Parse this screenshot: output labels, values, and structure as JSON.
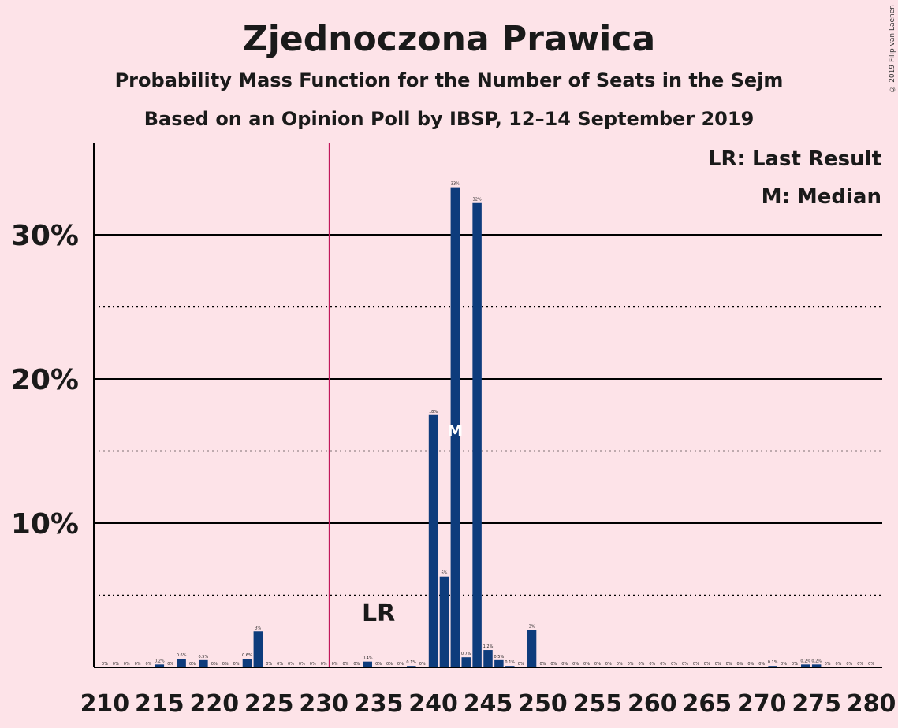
{
  "chart_data": {
    "type": "bar",
    "title": "Zjednoczona Prawica",
    "subtitle1": "Probability Mass Function for the Number of Seats in the Sejm",
    "subtitle2": "Based on an Opinion Poll by IBSP, 12–14 September 2019",
    "copyright": "© 2019 Filip van Laenen",
    "legend": {
      "lr": "LR: Last Result",
      "median": "M: Median"
    },
    "last_result_marker": "LR",
    "median_marker": "M",
    "last_result_seat": 235,
    "median_seat": 242,
    "ylim": [
      0,
      36.3
    ],
    "yticks": [
      {
        "value": 10,
        "label": "10%"
      },
      {
        "value": 20,
        "label": "20%"
      },
      {
        "value": 30,
        "label": "30%"
      }
    ],
    "xlim": [
      209,
      281
    ],
    "xticks": [
      "210",
      "215",
      "220",
      "225",
      "230",
      "235",
      "240",
      "245",
      "250",
      "255",
      "260",
      "265",
      "270",
      "275",
      "280"
    ],
    "colors": {
      "bar": "#0e3c7c",
      "majority_line": "#c2185b",
      "background": "#fde3e8",
      "grid": "#000000"
    },
    "majority_line_x": 230.5,
    "bars": [
      {
        "x": 210,
        "value": 0,
        "label": "0%"
      },
      {
        "x": 211,
        "value": 0,
        "label": "0%"
      },
      {
        "x": 212,
        "value": 0,
        "label": "0%"
      },
      {
        "x": 213,
        "value": 0,
        "label": "0%"
      },
      {
        "x": 214,
        "value": 0,
        "label": "0%"
      },
      {
        "x": 215,
        "value": 0.2,
        "label": "0.2%"
      },
      {
        "x": 216,
        "value": 0,
        "label": "0%"
      },
      {
        "x": 217,
        "value": 0.6,
        "label": "0.6%"
      },
      {
        "x": 218,
        "value": 0,
        "label": "0%"
      },
      {
        "x": 219,
        "value": 0.5,
        "label": "0.5%"
      },
      {
        "x": 220,
        "value": 0,
        "label": "0%"
      },
      {
        "x": 221,
        "value": 0,
        "label": "0%"
      },
      {
        "x": 222,
        "value": 0,
        "label": "0%"
      },
      {
        "x": 223,
        "value": 0.6,
        "label": "0.6%"
      },
      {
        "x": 224,
        "value": 2.5,
        "label": "3%"
      },
      {
        "x": 225,
        "value": 0,
        "label": "0%"
      },
      {
        "x": 226,
        "value": 0,
        "label": "0%"
      },
      {
        "x": 227,
        "value": 0,
        "label": "0%"
      },
      {
        "x": 228,
        "value": 0,
        "label": "0%"
      },
      {
        "x": 229,
        "value": 0,
        "label": "0%"
      },
      {
        "x": 230,
        "value": 0,
        "label": "0%"
      },
      {
        "x": 231,
        "value": 0,
        "label": "0%"
      },
      {
        "x": 232,
        "value": 0,
        "label": "0%"
      },
      {
        "x": 233,
        "value": 0,
        "label": "0%"
      },
      {
        "x": 234,
        "value": 0.4,
        "label": "0.4%"
      },
      {
        "x": 235,
        "value": 0,
        "label": "0%"
      },
      {
        "x": 236,
        "value": 0,
        "label": "0%"
      },
      {
        "x": 237,
        "value": 0,
        "label": "0%"
      },
      {
        "x": 238,
        "value": 0.1,
        "label": "0.1%"
      },
      {
        "x": 239,
        "value": 0,
        "label": "0%"
      },
      {
        "x": 240,
        "value": 17.5,
        "label": "18%"
      },
      {
        "x": 241,
        "value": 6.3,
        "label": "6%"
      },
      {
        "x": 242,
        "value": 33.3,
        "label": "33%"
      },
      {
        "x": 243,
        "value": 0.7,
        "label": "0.7%"
      },
      {
        "x": 244,
        "value": 32.2,
        "label": "32%"
      },
      {
        "x": 245,
        "value": 1.2,
        "label": "1.2%"
      },
      {
        "x": 246,
        "value": 0.5,
        "label": "0.5%"
      },
      {
        "x": 247,
        "value": 0.1,
        "label": "0.1%"
      },
      {
        "x": 248,
        "value": 0,
        "label": "0%"
      },
      {
        "x": 249,
        "value": 2.6,
        "label": "3%"
      },
      {
        "x": 250,
        "value": 0,
        "label": "0%"
      },
      {
        "x": 251,
        "value": 0,
        "label": "0%"
      },
      {
        "x": 252,
        "value": 0,
        "label": "0%"
      },
      {
        "x": 253,
        "value": 0,
        "label": "0%"
      },
      {
        "x": 254,
        "value": 0,
        "label": "0%"
      },
      {
        "x": 255,
        "value": 0,
        "label": "0%"
      },
      {
        "x": 256,
        "value": 0,
        "label": "0%"
      },
      {
        "x": 257,
        "value": 0,
        "label": "0%"
      },
      {
        "x": 258,
        "value": 0,
        "label": "0%"
      },
      {
        "x": 259,
        "value": 0,
        "label": "0%"
      },
      {
        "x": 260,
        "value": 0,
        "label": "0%"
      },
      {
        "x": 261,
        "value": 0,
        "label": "0%"
      },
      {
        "x": 262,
        "value": 0,
        "label": "0%"
      },
      {
        "x": 263,
        "value": 0,
        "label": "0%"
      },
      {
        "x": 264,
        "value": 0,
        "label": "0%"
      },
      {
        "x": 265,
        "value": 0,
        "label": "0%"
      },
      {
        "x": 266,
        "value": 0,
        "label": "0%"
      },
      {
        "x": 267,
        "value": 0,
        "label": "0%"
      },
      {
        "x": 268,
        "value": 0,
        "label": "0%"
      },
      {
        "x": 269,
        "value": 0,
        "label": "0%"
      },
      {
        "x": 270,
        "value": 0,
        "label": "0%"
      },
      {
        "x": 271,
        "value": 0.1,
        "label": "0.1%"
      },
      {
        "x": 272,
        "value": 0,
        "label": "0%"
      },
      {
        "x": 273,
        "value": 0,
        "label": "0%"
      },
      {
        "x": 274,
        "value": 0.2,
        "label": "0.2%"
      },
      {
        "x": 275,
        "value": 0.2,
        "label": "0.2%"
      },
      {
        "x": 276,
        "value": 0,
        "label": "0%"
      },
      {
        "x": 277,
        "value": 0,
        "label": "0%"
      },
      {
        "x": 278,
        "value": 0,
        "label": "0%"
      },
      {
        "x": 279,
        "value": 0,
        "label": "0%"
      },
      {
        "x": 280,
        "value": 0,
        "label": "0%"
      }
    ]
  }
}
